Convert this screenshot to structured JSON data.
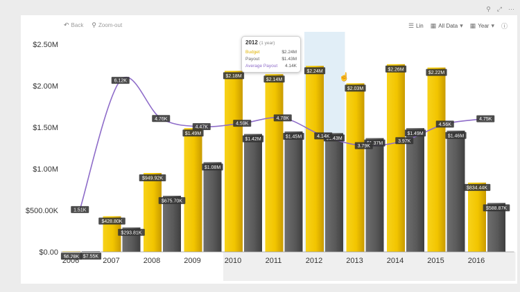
{
  "window": {
    "icons": [
      "filter-icon",
      "expand-icon",
      "more-icon"
    ]
  },
  "toolbar": {
    "back_label": "Back",
    "zoom_out_label": "Zoom-out",
    "scale_label": "Lin",
    "data_label": "All Data",
    "period_label": "Year"
  },
  "tooltip": {
    "title": "2012",
    "subtitle": "(1 year)",
    "rows": [
      {
        "label": "Budget",
        "value": "$2.24M",
        "color": "#e0b400"
      },
      {
        "label": "Payout",
        "value": "$1.43M",
        "color": "#666666"
      },
      {
        "label": "Average Payout",
        "value": "4.14K",
        "color": "#8e6cc9"
      }
    ]
  },
  "chart_data": {
    "type": "bar",
    "categories": [
      "2006",
      "2007",
      "2008",
      "2009",
      "2010",
      "2011",
      "2012",
      "2013",
      "2014",
      "2015",
      "2016"
    ],
    "series": [
      {
        "name": "Budget",
        "type": "bar",
        "color": "#f2c500",
        "values": [
          6280,
          428800,
          949920,
          1490000,
          2180000,
          2140000,
          2240000,
          2030000,
          2260000,
          2220000,
          834440
        ],
        "labels": [
          "$6.28K",
          "$428.80K",
          "$949.92K",
          "$1.49M",
          "$2.18M",
          "$2.14M",
          "$2.24M",
          "$2.03M",
          "$2.26M",
          "$2.22M",
          "$834.44K"
        ]
      },
      {
        "name": "Payout",
        "type": "bar",
        "color": "#5a5a5a",
        "values": [
          7550,
          293810,
          675700,
          1080000,
          1420000,
          1450000,
          1430000,
          1370000,
          1490000,
          1460000,
          588870
        ],
        "labels": [
          "$7.55K",
          "$293.81K",
          "$675.70K",
          "$1.08M",
          "$1.42M",
          "$1.45M",
          "$1.43M",
          "$1.37M",
          "$1.49M",
          "$1.46M",
          "$588.87K"
        ]
      },
      {
        "name": "Average Payout",
        "type": "line",
        "color": "#8e6cc9",
        "values": [
          1.51,
          6.12,
          4.76,
          4.47,
          4.59,
          4.78,
          4.14,
          3.79,
          3.97,
          4.56,
          4.75
        ],
        "labels": [
          "1.51K",
          "6.12K",
          "4.76K",
          "4.47K",
          "4.59K",
          "4.78K",
          "4.14K",
          "3.79K",
          "3.97K",
          "4.56K",
          "4.75K"
        ]
      }
    ],
    "yaxis": {
      "ticks": [
        0,
        500000,
        1000000,
        1500000,
        2000000,
        2500000
      ],
      "tick_labels": [
        "$0.00",
        "$500.00K",
        "$1.00M",
        "$1.50M",
        "$2.00M",
        "$2.50M"
      ],
      "ylim": [
        0,
        2700000
      ]
    },
    "secondary_ylim": [
      0,
      8
    ],
    "highlighted_category": "2012",
    "shaded_range": [
      "2010",
      "2016"
    ],
    "grid": false
  }
}
